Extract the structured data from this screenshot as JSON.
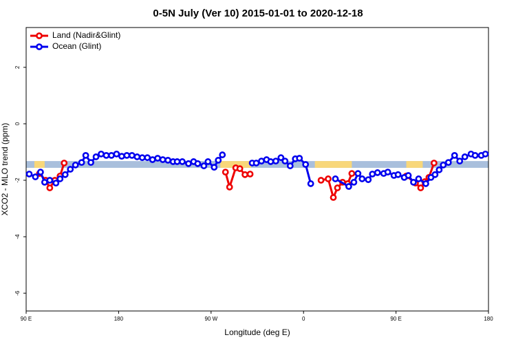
{
  "chart_data": {
    "type": "line",
    "title": "0-5N July (Ver 10)   2015-01-01 to 2020-12-18",
    "x_label": "Longitude (deg E)",
    "y_label": "XCO2 - MLO trend (ppm)",
    "xlim": [
      90,
      540
    ],
    "ylim": [
      -6.63,
      3.41
    ],
    "xticks": [
      {
        "value": 90,
        "label": "90 E"
      },
      180,
      {
        "value": 270,
        "label": "90 W"
      },
      {
        "value": 360,
        "label": "0"
      },
      {
        "value": 450,
        "label": "90 E"
      },
      {
        "value": 540,
        "label": "180"
      }
    ],
    "yticks": [
      2,
      0,
      -2,
      -4,
      -6
    ],
    "legend": "top-left",
    "band": {
      "ylim": [
        -1.32,
        -1.56
      ],
      "color": "#a9bfdc",
      "land_color": "#f8d77a",
      "land_spans": [
        [
          98,
          108
        ],
        [
          279,
          309
        ],
        [
          371,
          407
        ],
        [
          460,
          476
        ]
      ]
    },
    "series": [
      {
        "name": "Land (Nadir&Glint)",
        "color": "#ee0000",
        "x": [
          103,
          109,
          113,
          118,
          123,
          127,
          null,
          284,
          288,
          294,
          298,
          303,
          308,
          null,
          377,
          384,
          389,
          393,
          398,
          403,
          407,
          null,
          460,
          469,
          474,
          478,
          482,
          487
        ],
        "values": [
          -1.76,
          -2.0,
          -2.27,
          -2.0,
          -1.85,
          -1.39,
          null,
          -1.71,
          -2.24,
          -1.56,
          -1.59,
          -1.8,
          -1.78,
          null,
          -2.0,
          -1.95,
          -2.61,
          -2.27,
          -2.07,
          -2.12,
          -1.76,
          null,
          -1.85,
          -2.1,
          -2.27,
          -2.05,
          -1.9,
          -1.39
        ]
      },
      {
        "name": "Ocean (Glint)",
        "color": "#0000ee",
        "x": [
          93,
          99,
          104,
          108,
          113,
          119,
          123,
          128,
          133,
          138,
          144,
          148,
          153,
          158,
          163,
          168,
          173,
          178,
          183,
          188,
          193,
          198,
          203,
          208,
          213,
          218,
          223,
          228,
          233,
          237,
          242,
          248,
          253,
          257,
          263,
          267,
          273,
          277,
          281,
          null,
          310,
          314,
          319,
          324,
          328,
          333,
          338,
          342,
          347,
          352,
          356,
          362,
          367,
          null,
          391,
          404,
          409,
          413,
          417,
          423,
          427,
          432,
          438,
          442,
          448,
          452,
          458,
          462,
          467,
          472,
          479,
          484,
          488,
          492,
          496,
          501,
          507,
          512,
          517,
          523,
          527,
          533,
          537
        ],
        "values": [
          -1.78,
          -1.88,
          -1.71,
          -2.07,
          -2.0,
          -2.1,
          -1.95,
          -1.8,
          -1.61,
          -1.46,
          -1.37,
          -1.12,
          -1.37,
          -1.17,
          -1.07,
          -1.12,
          -1.12,
          -1.07,
          -1.15,
          -1.12,
          -1.12,
          -1.17,
          -1.2,
          -1.2,
          -1.27,
          -1.22,
          -1.27,
          -1.29,
          -1.34,
          -1.34,
          -1.34,
          -1.41,
          -1.34,
          -1.41,
          -1.49,
          -1.34,
          -1.54,
          -1.29,
          -1.1,
          null,
          -1.39,
          -1.39,
          -1.32,
          -1.27,
          -1.34,
          -1.32,
          -1.2,
          -1.32,
          -1.49,
          -1.24,
          -1.22,
          -1.44,
          -2.12,
          null,
          -1.95,
          -2.22,
          -2.07,
          -1.76,
          -1.95,
          -1.98,
          -1.78,
          -1.73,
          -1.76,
          -1.71,
          -1.83,
          -1.8,
          -1.9,
          -1.83,
          -2.07,
          -1.95,
          -2.12,
          -1.9,
          -1.8,
          -1.63,
          -1.46,
          -1.37,
          -1.12,
          -1.32,
          -1.17,
          -1.07,
          -1.12,
          -1.12,
          -1.07
        ]
      }
    ]
  }
}
